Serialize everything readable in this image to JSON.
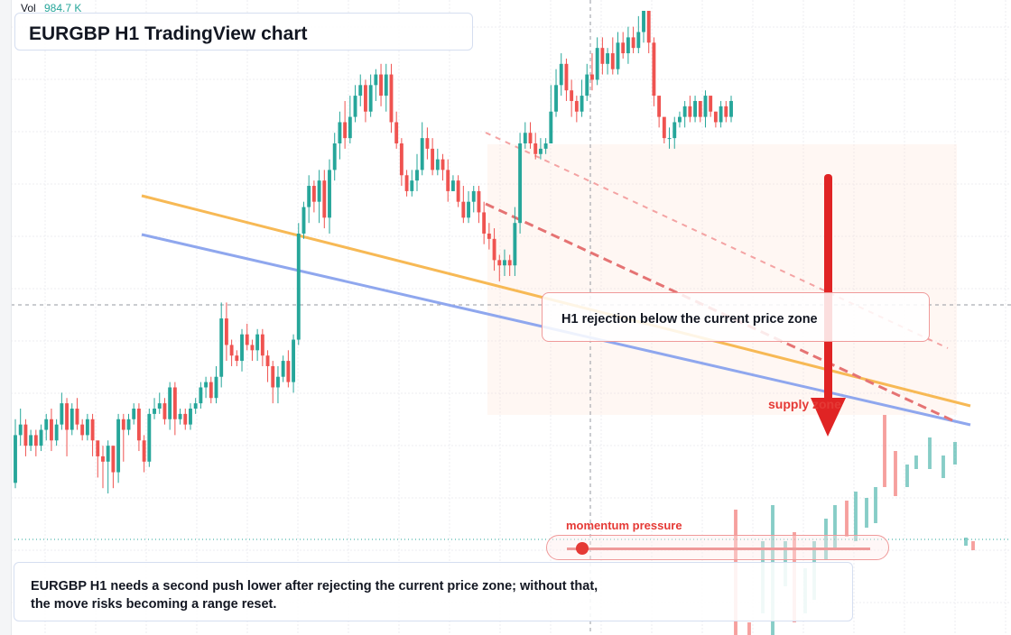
{
  "title": "EURGBP H1 TradingView chart",
  "volume": {
    "label": "Vol",
    "value": "984.7 K"
  },
  "callout": "H1 rejection below the current price zone",
  "supply_label": "supply zone",
  "momentum": {
    "label": "momentum pressure",
    "level": 0.05
  },
  "summary": {
    "line1": "EURGBP H1 needs a second push lower after rejecting the current price zone; without that,",
    "line2": "the move risks becoming a range reset."
  },
  "colors": {
    "up": "#26a69a",
    "down": "#ef5350",
    "trend_orange": "#f7b955",
    "trend_blue": "#8fa7ee",
    "arrow": "#e02424",
    "accent_red": "#e53935"
  },
  "chart_data": {
    "type": "candlestick",
    "symbol": "EURGBP",
    "timeframe": "H1",
    "note": "values are relative price levels read off the unlabeled chart (0 = bottom, 100 = top)",
    "ylim": [
      0,
      100
    ],
    "candles": [
      [
        11,
        20,
        23,
        10
      ],
      [
        20,
        22,
        25,
        18
      ],
      [
        22,
        18,
        23,
        16
      ],
      [
        18,
        20,
        21,
        17
      ],
      [
        20,
        18,
        21,
        16
      ],
      [
        18,
        21,
        22,
        17
      ],
      [
        21,
        23,
        24,
        19
      ],
      [
        23,
        19,
        25,
        17
      ],
      [
        19,
        22,
        23,
        18
      ],
      [
        22,
        26,
        28,
        21
      ],
      [
        26,
        21,
        27,
        16
      ],
      [
        21,
        25,
        26,
        20
      ],
      [
        25,
        22,
        27,
        21
      ],
      [
        22,
        20,
        23,
        19
      ],
      [
        20,
        23,
        24,
        19
      ],
      [
        23,
        19,
        24,
        16
      ],
      [
        19,
        16,
        18,
        12
      ],
      [
        16,
        15,
        18,
        10
      ],
      [
        15,
        18,
        19,
        9
      ],
      [
        18,
        13,
        17,
        10
      ],
      [
        13,
        23,
        24,
        11
      ],
      [
        23,
        21,
        24,
        15
      ],
      [
        21,
        23,
        24,
        20
      ],
      [
        23,
        25,
        26,
        22
      ],
      [
        25,
        19,
        26,
        17
      ],
      [
        19,
        15,
        20,
        13
      ],
      [
        15,
        24,
        25,
        14
      ],
      [
        24,
        25,
        27,
        23
      ],
      [
        25,
        26,
        28,
        24
      ],
      [
        26,
        23,
        27,
        22
      ],
      [
        23,
        29,
        30,
        21
      ],
      [
        29,
        23,
        30,
        20
      ],
      [
        23,
        24,
        25,
        22
      ],
      [
        24,
        22,
        25,
        21
      ],
      [
        22,
        25,
        26,
        21
      ],
      [
        25,
        26,
        27,
        24
      ],
      [
        26,
        29,
        30,
        25
      ],
      [
        29,
        30,
        31,
        27
      ],
      [
        30,
        27,
        31,
        26
      ],
      [
        27,
        31,
        33,
        26
      ],
      [
        31,
        42,
        45,
        29
      ],
      [
        42,
        37,
        45,
        34
      ],
      [
        37,
        35,
        38,
        33
      ],
      [
        35,
        34,
        36,
        33
      ],
      [
        34,
        39,
        40,
        32
      ],
      [
        39,
        37,
        41,
        36
      ],
      [
        37,
        36,
        38,
        34
      ],
      [
        36,
        39,
        40,
        34
      ],
      [
        39,
        35,
        40,
        33
      ],
      [
        35,
        33,
        36,
        30
      ],
      [
        33,
        29,
        34,
        26
      ],
      [
        29,
        31,
        33,
        26
      ],
      [
        31,
        34,
        35,
        30
      ],
      [
        34,
        30,
        36,
        29
      ],
      [
        30,
        38,
        39,
        28
      ],
      [
        38,
        58,
        60,
        37
      ],
      [
        58,
        63,
        64,
        57
      ],
      [
        63,
        67,
        69,
        60
      ],
      [
        67,
        64,
        68,
        62
      ],
      [
        64,
        68,
        70,
        60
      ],
      [
        68,
        61,
        70,
        59
      ],
      [
        61,
        70,
        72,
        58
      ],
      [
        70,
        75,
        77,
        68
      ],
      [
        75,
        79,
        81,
        72
      ],
      [
        79,
        76,
        83,
        74
      ],
      [
        76,
        80,
        84,
        75
      ],
      [
        80,
        84,
        86,
        79
      ],
      [
        84,
        86,
        88,
        82
      ],
      [
        86,
        81,
        87,
        79
      ],
      [
        81,
        86,
        88,
        80
      ],
      [
        86,
        88,
        89,
        83
      ],
      [
        88,
        84,
        90,
        82
      ],
      [
        84,
        88,
        90,
        81
      ],
      [
        88,
        79,
        90,
        77
      ],
      [
        79,
        75,
        81,
        74
      ],
      [
        75,
        69,
        76,
        67
      ],
      [
        69,
        66,
        70,
        65
      ],
      [
        66,
        68,
        70,
        65
      ],
      [
        68,
        70,
        73,
        66
      ],
      [
        70,
        76,
        79,
        69
      ],
      [
        76,
        74,
        78,
        72
      ],
      [
        74,
        70,
        76,
        69
      ],
      [
        70,
        72,
        74,
        69
      ],
      [
        72,
        70,
        73,
        68
      ],
      [
        70,
        66,
        72,
        64
      ],
      [
        66,
        68,
        69,
        66
      ],
      [
        68,
        64,
        69,
        63
      ],
      [
        64,
        61,
        67,
        60
      ],
      [
        61,
        64,
        66,
        60
      ],
      [
        64,
        66,
        67,
        62
      ],
      [
        66,
        62,
        67,
        60
      ],
      [
        62,
        58,
        64,
        56
      ],
      [
        58,
        57,
        60,
        55
      ],
      [
        57,
        53,
        59,
        51
      ],
      [
        53,
        52,
        54,
        49
      ],
      [
        52,
        53,
        55,
        50
      ],
      [
        53,
        52,
        54,
        50
      ],
      [
        52,
        60,
        63,
        50
      ],
      [
        60,
        75,
        77,
        58
      ],
      [
        75,
        77,
        79,
        74
      ],
      [
        77,
        75,
        79,
        74
      ],
      [
        75,
        73,
        77,
        72
      ],
      [
        73,
        74,
        76,
        72
      ],
      [
        74,
        75,
        76,
        73
      ],
      [
        75,
        81,
        86,
        75
      ],
      [
        81,
        86,
        89,
        80
      ],
      [
        86,
        90,
        92,
        84
      ],
      [
        90,
        85,
        91,
        83
      ],
      [
        85,
        83,
        87,
        80
      ],
      [
        83,
        81,
        84,
        79
      ],
      [
        81,
        84,
        87,
        80
      ],
      [
        84,
        88,
        90,
        83
      ],
      [
        88,
        87,
        92,
        85
      ],
      [
        87,
        93,
        95,
        86
      ],
      [
        93,
        90,
        95,
        88
      ],
      [
        90,
        92,
        93,
        88
      ],
      [
        92,
        89,
        95,
        88
      ],
      [
        89,
        94,
        96,
        88
      ],
      [
        94,
        92,
        96,
        91
      ],
      [
        92,
        95,
        97,
        90
      ],
      [
        95,
        93,
        97,
        92
      ],
      [
        93,
        96,
        99,
        92
      ],
      [
        96,
        100,
        100,
        94
      ],
      [
        100,
        94,
        99,
        92
      ],
      [
        94,
        84,
        95,
        82
      ],
      [
        84,
        80,
        82,
        78
      ],
      [
        80,
        76,
        77,
        75
      ],
      [
        76,
        76,
        78,
        74
      ],
      [
        76,
        79,
        80,
        74
      ],
      [
        79,
        80,
        81,
        78
      ],
      [
        80,
        82,
        83,
        78
      ],
      [
        82,
        80,
        84,
        79
      ],
      [
        80,
        83,
        84,
        79
      ],
      [
        83,
        80,
        82,
        79
      ],
      [
        80,
        84,
        85,
        78
      ],
      [
        84,
        81,
        83,
        80
      ],
      [
        81,
        79,
        81,
        78
      ],
      [
        79,
        82,
        83,
        78
      ],
      [
        82,
        80,
        83,
        79
      ],
      [
        80,
        83,
        84,
        79
      ]
    ]
  }
}
